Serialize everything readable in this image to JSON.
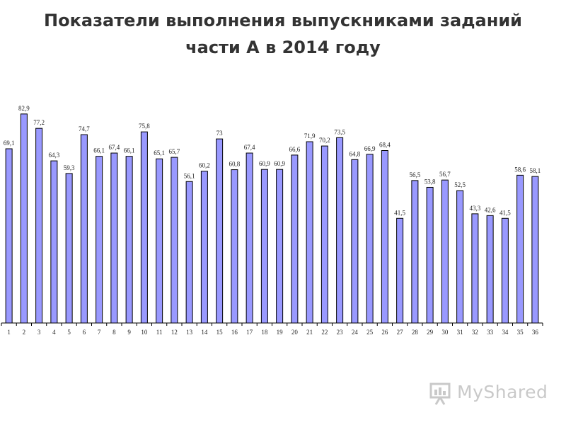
{
  "title_line1": "Показатели выполнения выпускниками заданий",
  "title_line2": "части А в 2014 году",
  "watermark_text": "MyShared",
  "colors": {
    "bar_fill": "#9999ff",
    "bar_stroke": "#000000",
    "axis": "#000000"
  },
  "chart_data": {
    "type": "bar",
    "categories": [
      "1",
      "2",
      "3",
      "4",
      "5",
      "6",
      "7",
      "8",
      "9",
      "10",
      "11",
      "12",
      "13",
      "14",
      "15",
      "16",
      "17",
      "18",
      "19",
      "20",
      "21",
      "22",
      "23",
      "24",
      "25",
      "26",
      "27",
      "28",
      "29",
      "30",
      "31",
      "32",
      "33",
      "34",
      "35",
      "36"
    ],
    "values": [
      69.1,
      82.9,
      77.2,
      64.3,
      59.3,
      74.7,
      66.1,
      67.4,
      66.1,
      75.8,
      65.1,
      65.7,
      56.1,
      60.2,
      73,
      60.8,
      67.4,
      60.9,
      60.9,
      66.6,
      71.9,
      70.2,
      73.5,
      64.8,
      66.9,
      68.4,
      41.5,
      56.5,
      53.8,
      56.7,
      52.5,
      43.3,
      42.6,
      41.5,
      58.6,
      58.1
    ],
    "value_labels": [
      "69,1",
      "82,9",
      "77,2",
      "64,3",
      "59,3",
      "74,7",
      "66,1",
      "67,4",
      "66,1",
      "75,8",
      "65,1",
      "65,7",
      "56,1",
      "60,2",
      "73",
      "60,8",
      "67,4",
      "60,9",
      "60,9",
      "66,6",
      "71,9",
      "70,2",
      "73,5",
      "64,8",
      "66,9",
      "68,4",
      "41,5",
      "56,5",
      "53,8",
      "56,7",
      "52,5",
      "43,3",
      "42,6",
      "41,5",
      "58,6",
      "58,1"
    ],
    "title": "Показатели выполнения выпускниками заданий части А в 2014 году",
    "xlabel": "",
    "ylabel": "",
    "ylim": [
      0,
      100
    ],
    "grid": false,
    "legend": "none"
  }
}
